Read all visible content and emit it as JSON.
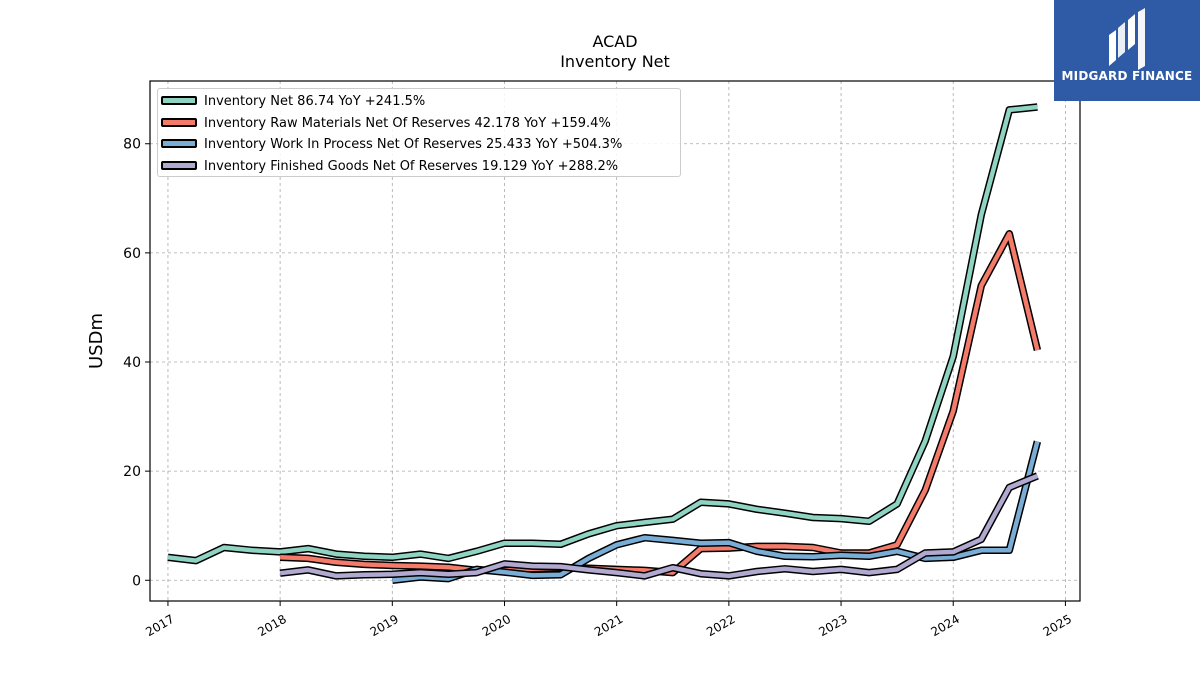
{
  "chart_data": {
    "type": "line",
    "title": "ACAD",
    "subtitle": "Inventory Net",
    "ylabel": "USDm",
    "xlabel": "",
    "xlim": [
      2016.84,
      2025.13
    ],
    "ylim": [
      -3.8,
      91.5
    ],
    "x_ticks": [
      "2017",
      "2018",
      "2019",
      "2020",
      "2021",
      "2022",
      "2023",
      "2024",
      "2025"
    ],
    "y_ticks": [
      "0",
      "20",
      "40",
      "60",
      "80"
    ],
    "grid": true,
    "legend_position": "top-left",
    "series": [
      {
        "name": "Inventory Net",
        "legend": "Inventory Net  86.74 YoY +241.5%",
        "color": "#8fd3c2",
        "x": [
          2017.0,
          2017.25,
          2017.5,
          2017.75,
          2018.0,
          2018.25,
          2018.5,
          2018.75,
          2019.0,
          2019.25,
          2019.5,
          2019.75,
          2020.0,
          2020.25,
          2020.5,
          2020.75,
          2021.0,
          2021.25,
          2021.5,
          2021.75,
          2022.0,
          2022.25,
          2022.5,
          2022.75,
          2023.0,
          2023.25,
          2023.5,
          2023.75,
          2024.0,
          2024.25,
          2024.5,
          2024.75
        ],
        "y": [
          4.2,
          3.6,
          6.0,
          5.5,
          5.2,
          5.8,
          4.8,
          4.4,
          4.2,
          4.8,
          4.0,
          5.3,
          6.8,
          6.8,
          6.6,
          8.5,
          10.0,
          10.6,
          11.2,
          14.3,
          14.0,
          13.0,
          12.3,
          11.5,
          11.3,
          10.8,
          14.0,
          25.5,
          41.0,
          67.0,
          86.2,
          86.74
        ]
      },
      {
        "name": "Inventory Raw Materials Net Of Reserves",
        "legend": "Inventory Raw Materials Net Of Reserves  42.178 YoY +159.4%",
        "color": "#f47a6a",
        "x": [
          2018.0,
          2018.25,
          2018.5,
          2018.75,
          2019.0,
          2019.25,
          2019.5,
          2019.75,
          2020.0,
          2020.25,
          2020.5,
          2020.75,
          2021.0,
          2021.25,
          2021.5,
          2021.75,
          2022.0,
          2022.25,
          2022.5,
          2022.75,
          2023.0,
          2023.25,
          2023.5,
          2023.75,
          2024.0,
          2024.25,
          2024.5,
          2024.75
        ],
        "y": [
          4.2,
          4.0,
          3.3,
          2.9,
          2.7,
          2.6,
          2.4,
          1.8,
          1.8,
          2.1,
          2.3,
          2.2,
          2.0,
          1.8,
          1.4,
          5.8,
          5.9,
          6.2,
          6.2,
          6.0,
          5.0,
          5.0,
          6.5,
          16.5,
          31.0,
          54.0,
          63.5,
          42.178
        ]
      },
      {
        "name": "Inventory Work In Process Net Of Reserves",
        "legend": "Inventory Work In Process Net Of Reserves  25.433 YoY +504.3%",
        "color": "#7aadd5",
        "x": [
          2019.0,
          2019.25,
          2019.5,
          2019.75,
          2020.0,
          2020.25,
          2020.5,
          2020.75,
          2021.0,
          2021.25,
          2021.5,
          2021.75,
          2022.0,
          2022.25,
          2022.5,
          2022.75,
          2023.0,
          2023.25,
          2023.5,
          2023.75,
          2024.0,
          2024.25,
          2024.5,
          2024.75
        ],
        "y": [
          0.0,
          0.6,
          0.3,
          2.0,
          1.5,
          0.9,
          1.0,
          4.0,
          6.5,
          7.8,
          7.3,
          6.8,
          6.9,
          5.3,
          4.4,
          4.3,
          4.6,
          4.4,
          5.3,
          4.0,
          4.2,
          5.5,
          5.5,
          25.433
        ]
      },
      {
        "name": "Inventory Finished Goods Net Of Reserves",
        "legend": "Inventory Finished Goods Net Of Reserves  19.129 YoY +288.2%",
        "color": "#b2a9d0",
        "x": [
          2018.0,
          2018.25,
          2018.5,
          2018.75,
          2019.0,
          2019.25,
          2019.5,
          2019.75,
          2020.0,
          2020.25,
          2020.5,
          2020.75,
          2021.0,
          2021.25,
          2021.5,
          2021.75,
          2022.0,
          2022.25,
          2022.5,
          2022.75,
          2023.0,
          2023.25,
          2023.5,
          2023.75,
          2024.0,
          2024.25,
          2024.5,
          2024.75
        ],
        "y": [
          1.3,
          1.9,
          0.8,
          1.0,
          1.1,
          1.4,
          1.1,
          1.4,
          3.0,
          2.6,
          2.5,
          1.9,
          1.4,
          0.8,
          2.3,
          1.2,
          0.8,
          1.6,
          2.1,
          1.6,
          2.0,
          1.4,
          2.0,
          5.0,
          5.2,
          7.5,
          17.0,
          19.129
        ]
      }
    ]
  },
  "logo": {
    "brand_text": "MIDGARD FINANCE"
  }
}
